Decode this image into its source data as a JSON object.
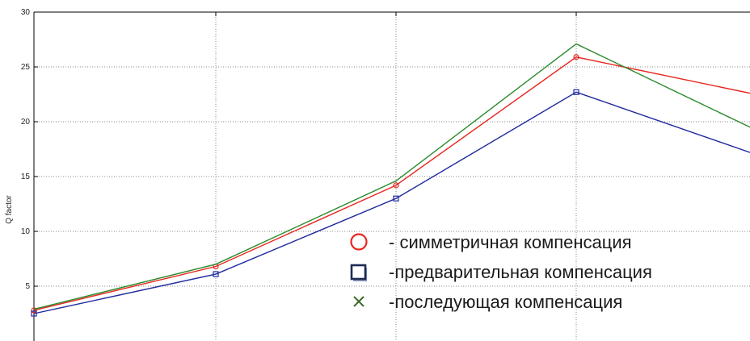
{
  "chart_data": {
    "type": "line",
    "title": "",
    "xlabel": "",
    "ylabel": "Q factor",
    "x": [
      1,
      2,
      3,
      4,
      5
    ],
    "ylim": [
      0,
      30
    ],
    "y_ticks": [
      5,
      10,
      15,
      20,
      25,
      30
    ],
    "grid": true,
    "legend_position": "lower-right",
    "series": [
      {
        "name": "- симметричная компенсация",
        "marker": "circle",
        "color": "#e8261f",
        "values": [
          2.8,
          6.8,
          14.2,
          25.9,
          22.6
        ]
      },
      {
        "name": "-предварительная компенсация",
        "marker": "square",
        "color": "#1f2a9e",
        "values": [
          2.5,
          6.1,
          13.0,
          22.7,
          17.2
        ]
      },
      {
        "name": "-последующая компенсация",
        "marker": "x",
        "color": "#2b8a2b",
        "values": [
          2.9,
          7.0,
          14.6,
          27.1,
          19.5
        ]
      }
    ],
    "legend_marker_colors": {
      "circle": "#e8261f",
      "square": "#1f2a56",
      "x": "#3f6b2a"
    }
  }
}
